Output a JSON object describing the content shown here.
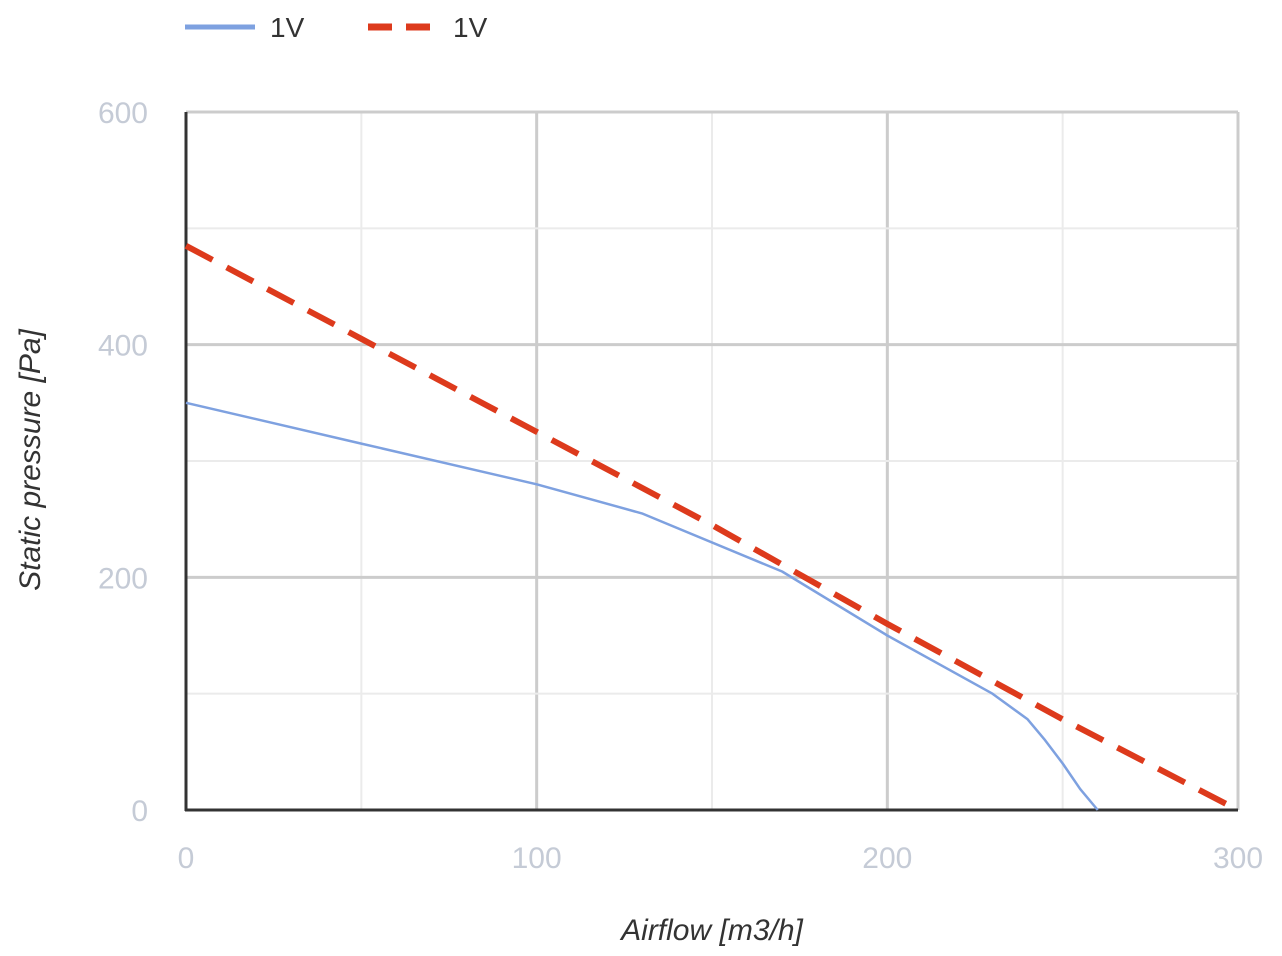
{
  "chart_data": {
    "type": "line",
    "title": "",
    "xlabel": "Airflow [m3/h]",
    "ylabel": "Static pressure [Pa]",
    "xlim": [
      0,
      300
    ],
    "ylim": [
      0,
      600
    ],
    "x_ticks": [
      "0",
      "100",
      "200",
      "300"
    ],
    "y_ticks": [
      "0",
      "200",
      "400",
      "600"
    ],
    "grid": true,
    "legend_position": "top-left",
    "series": [
      {
        "name": "1V",
        "color": "#7ea1e0",
        "style": "solid",
        "x": [
          0,
          50,
          100,
          130,
          170,
          200,
          230,
          240,
          245,
          250,
          255,
          260
        ],
        "y": [
          350,
          315,
          280,
          255,
          205,
          150,
          100,
          78,
          60,
          40,
          18,
          0
        ]
      },
      {
        "name": "1V",
        "color": "#dd3a1c",
        "style": "dashed",
        "x": [
          0,
          50,
          100,
          150,
          200,
          250,
          300
        ],
        "y": [
          485,
          405,
          325,
          245,
          160,
          78,
          0
        ]
      }
    ]
  }
}
